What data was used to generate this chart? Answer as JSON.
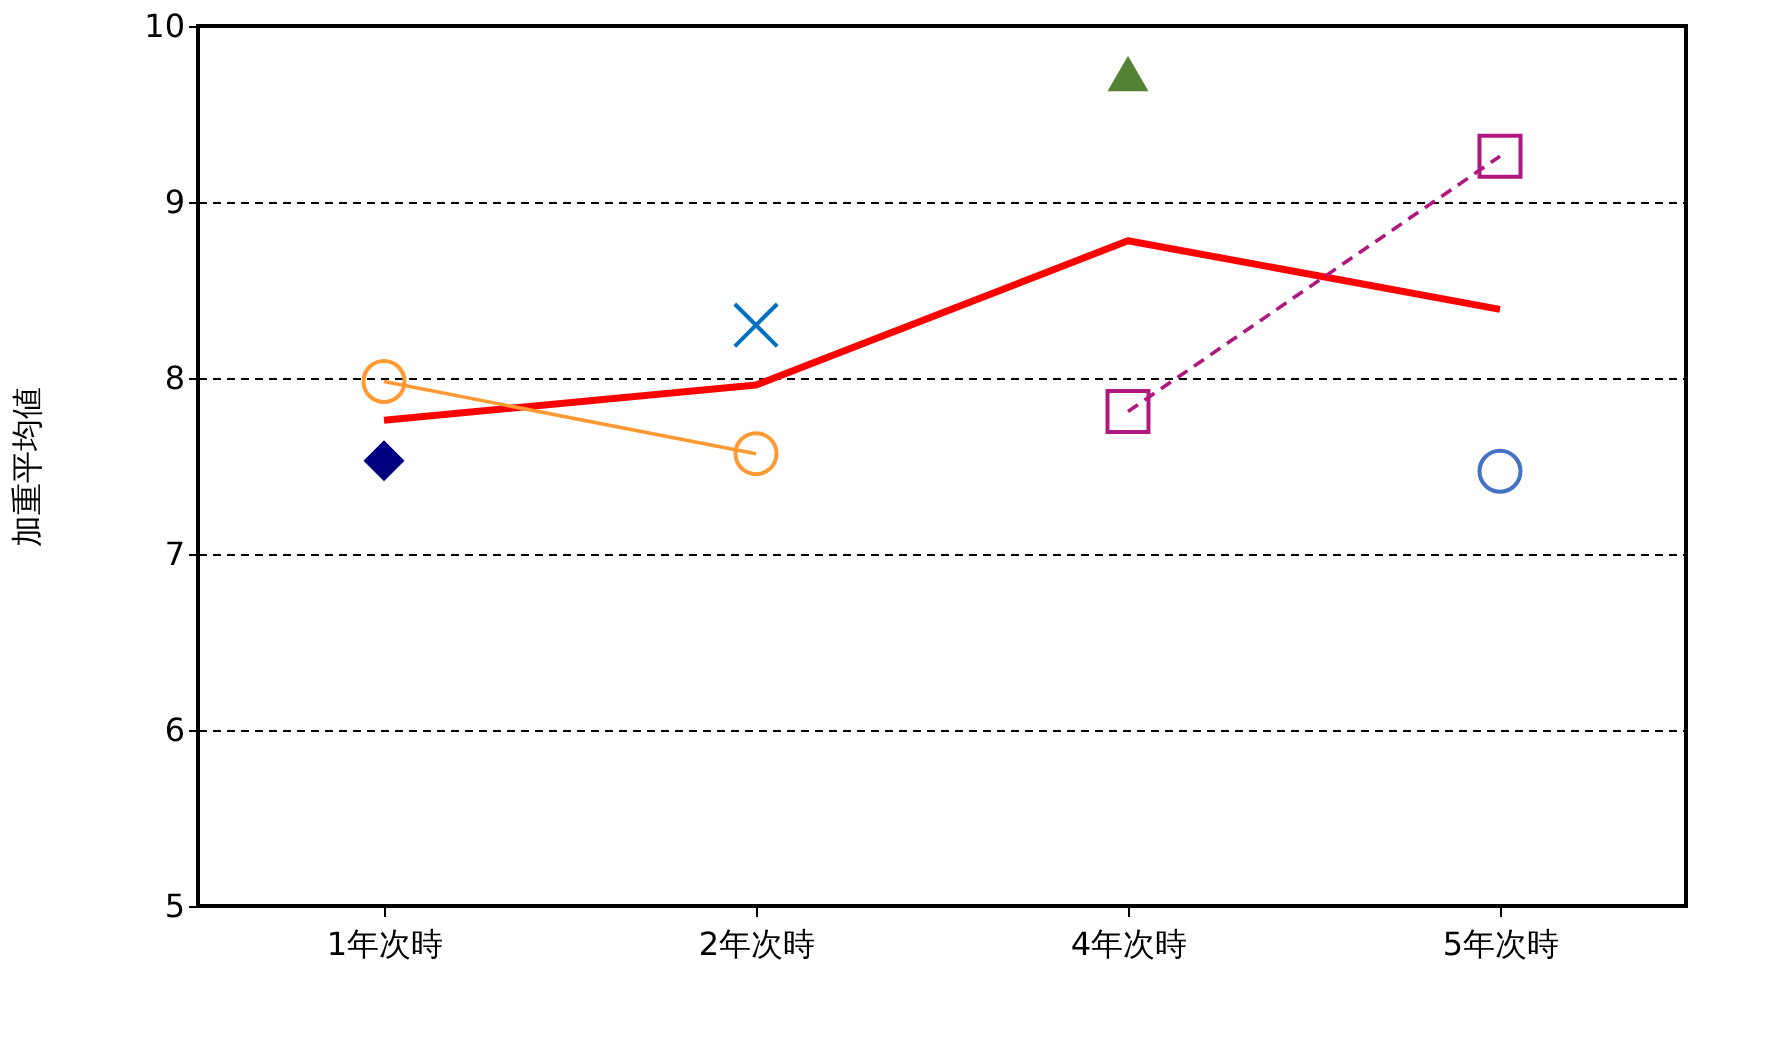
{
  "chart_data": {
    "type": "line",
    "ylabel": "加重平均値",
    "categories": [
      "1年次時",
      "2年次時",
      "4年次時",
      "5年次時"
    ],
    "ylim": [
      5,
      10
    ],
    "yticks": [
      5,
      6,
      7,
      8,
      9,
      10
    ],
    "grid": "y",
    "series": [
      {
        "type": "line",
        "color": "#ff0000",
        "marker": "none",
        "line_style": "solid",
        "values": [
          7.76,
          7.96,
          8.78,
          8.39
        ]
      },
      {
        "type": "line",
        "color": "#ff9933",
        "marker": "circle",
        "line_style": "solid",
        "values": [
          7.98,
          7.57,
          null,
          null
        ]
      },
      {
        "type": "scatter",
        "color": "#000080",
        "marker": "diamond",
        "values": [
          7.53,
          null,
          null,
          null
        ]
      },
      {
        "type": "scatter",
        "color": "#0070c0",
        "marker": "cross",
        "values": [
          null,
          8.3,
          null,
          null
        ]
      },
      {
        "type": "scatter",
        "color": "#548235",
        "marker": "triangle",
        "values": [
          null,
          null,
          9.73,
          null
        ]
      },
      {
        "type": "line",
        "color": "#b0177f",
        "marker": "square",
        "line_style": "dashed",
        "values": [
          null,
          null,
          7.81,
          9.26
        ]
      },
      {
        "type": "scatter",
        "color": "#4472c4",
        "marker": "circle",
        "values": [
          null,
          null,
          null,
          7.47
        ]
      }
    ]
  }
}
